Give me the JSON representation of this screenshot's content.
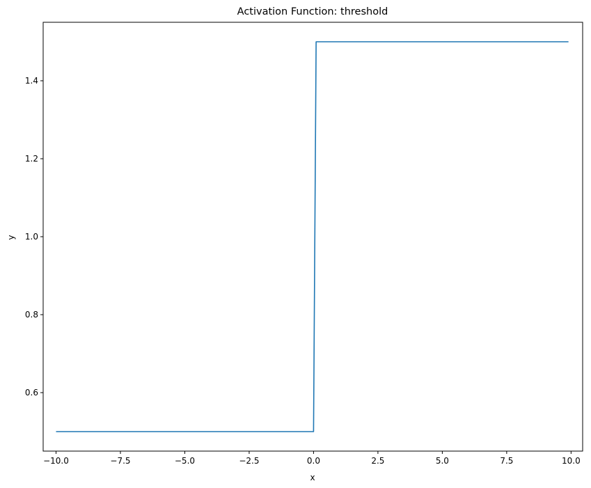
{
  "chart_data": {
    "type": "line",
    "title": "Activation Function: threshold",
    "xlabel": "x",
    "ylabel": "y",
    "xlim": [
      -10.5,
      10.45
    ],
    "ylim": [
      0.45,
      1.55
    ],
    "xticks": [
      -10.0,
      -7.5,
      -5.0,
      -2.5,
      0.0,
      2.5,
      5.0,
      7.5,
      10.0
    ],
    "xtick_labels": [
      "−10.0",
      "−7.5",
      "−5.0",
      "−2.5",
      "0.0",
      "2.5",
      "5.0",
      "7.5",
      "10.0"
    ],
    "yticks": [
      0.6,
      0.8,
      1.0,
      1.2,
      1.4
    ],
    "ytick_labels": [
      "0.6",
      "0.8",
      "1.0",
      "1.2",
      "1.4"
    ],
    "grid": false,
    "series": [
      {
        "color": "#1f77b4",
        "x": [
          -10.0,
          0.0,
          0.1,
          9.9
        ],
        "y": [
          0.5,
          0.5,
          1.5,
          1.5
        ]
      }
    ]
  }
}
